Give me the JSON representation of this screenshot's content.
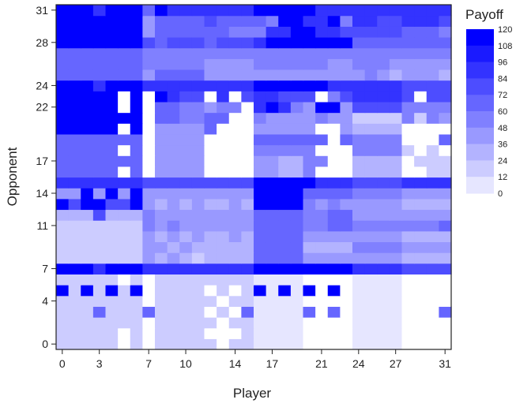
{
  "chart_data": {
    "type": "heatmap",
    "title": "",
    "xlabel": "Player",
    "ylabel": "Opponent",
    "x_ticks": [
      0,
      3,
      7,
      10,
      14,
      17,
      21,
      24,
      27,
      31
    ],
    "y_ticks": [
      0,
      4,
      7,
      11,
      14,
      17,
      22,
      24,
      28,
      31
    ],
    "x_range": [
      0,
      31
    ],
    "y_range": [
      0,
      31
    ],
    "colorbar": {
      "title": "Payoff",
      "ticks": [
        0,
        12,
        24,
        36,
        48,
        60,
        72,
        84,
        96,
        108,
        120
      ],
      "range": [
        0,
        120
      ],
      "color_low": "#ffffff",
      "color_high": "#0000ff"
    },
    "z": [
      [
        24,
        24,
        24,
        24,
        24,
        0,
        24,
        0,
        24,
        24,
        24,
        24,
        24,
        0,
        24,
        24,
        12,
        12,
        12,
        12,
        0,
        0,
        0,
        0,
        12,
        12,
        12,
        12,
        0,
        0,
        0,
        0
      ],
      [
        24,
        24,
        24,
        24,
        24,
        0,
        24,
        0,
        24,
        24,
        24,
        24,
        0,
        0,
        0,
        24,
        12,
        12,
        12,
        12,
        0,
        0,
        0,
        0,
        12,
        12,
        12,
        12,
        0,
        0,
        0,
        0
      ],
      [
        24,
        24,
        24,
        24,
        24,
        24,
        24,
        0,
        24,
        24,
        24,
        24,
        24,
        0,
        24,
        24,
        12,
        12,
        12,
        12,
        0,
        0,
        0,
        0,
        12,
        12,
        12,
        12,
        0,
        0,
        0,
        0
      ],
      [
        24,
        24,
        24,
        72,
        24,
        24,
        24,
        72,
        24,
        24,
        24,
        24,
        0,
        24,
        0,
        72,
        12,
        12,
        12,
        12,
        72,
        0,
        72,
        0,
        12,
        12,
        12,
        12,
        0,
        0,
        0,
        72
      ],
      [
        24,
        24,
        24,
        24,
        24,
        24,
        24,
        0,
        24,
        24,
        24,
        24,
        24,
        0,
        24,
        24,
        12,
        12,
        12,
        12,
        0,
        0,
        0,
        0,
        12,
        12,
        12,
        12,
        0,
        0,
        0,
        0
      ],
      [
        120,
        24,
        120,
        24,
        120,
        24,
        120,
        0,
        24,
        24,
        24,
        24,
        0,
        24,
        0,
        24,
        120,
        12,
        120,
        12,
        120,
        0,
        120,
        0,
        12,
        12,
        12,
        12,
        0,
        0,
        0,
        0
      ],
      [
        24,
        24,
        24,
        24,
        24,
        0,
        24,
        0,
        24,
        24,
        24,
        24,
        24,
        24,
        24,
        24,
        12,
        12,
        12,
        12,
        0,
        0,
        0,
        0,
        12,
        12,
        12,
        12,
        0,
        0,
        0,
        0
      ],
      [
        120,
        120,
        120,
        96,
        120,
        120,
        120,
        96,
        96,
        96,
        96,
        96,
        96,
        96,
        96,
        96,
        120,
        120,
        120,
        120,
        120,
        120,
        120,
        120,
        96,
        96,
        96,
        96,
        84,
        84,
        84,
        84
      ],
      [
        24,
        24,
        24,
        24,
        24,
        24,
        24,
        48,
        36,
        48,
        36,
        24,
        36,
        36,
        36,
        36,
        72,
        72,
        72,
        72,
        48,
        48,
        48,
        48,
        48,
        48,
        48,
        48,
        36,
        36,
        36,
        36
      ],
      [
        24,
        24,
        24,
        24,
        24,
        24,
        24,
        48,
        48,
        36,
        48,
        36,
        36,
        36,
        36,
        36,
        72,
        72,
        72,
        72,
        36,
        36,
        36,
        36,
        60,
        60,
        60,
        60,
        48,
        48,
        48,
        48
      ],
      [
        24,
        24,
        24,
        24,
        24,
        24,
        24,
        48,
        36,
        48,
        36,
        48,
        36,
        36,
        48,
        36,
        72,
        72,
        72,
        72,
        48,
        48,
        48,
        48,
        48,
        48,
        48,
        48,
        36,
        36,
        36,
        36
      ],
      [
        24,
        24,
        24,
        24,
        24,
        24,
        24,
        60,
        48,
        60,
        48,
        48,
        48,
        48,
        48,
        48,
        72,
        72,
        72,
        72,
        60,
        60,
        72,
        72,
        60,
        60,
        60,
        60,
        60,
        60,
        60,
        72
      ],
      [
        36,
        36,
        36,
        84,
        36,
        36,
        36,
        60,
        48,
        48,
        48,
        48,
        48,
        48,
        48,
        48,
        72,
        72,
        72,
        72,
        60,
        60,
        72,
        72,
        48,
        48,
        48,
        48,
        48,
        48,
        48,
        48
      ],
      [
        120,
        84,
        120,
        120,
        84,
        84,
        120,
        48,
        36,
        48,
        36,
        48,
        36,
        36,
        48,
        36,
        120,
        120,
        120,
        120,
        60,
        48,
        60,
        48,
        48,
        48,
        48,
        48,
        36,
        36,
        36,
        36
      ],
      [
        48,
        48,
        120,
        48,
        120,
        48,
        120,
        48,
        48,
        48,
        48,
        48,
        48,
        48,
        48,
        48,
        120,
        120,
        120,
        120,
        72,
        72,
        72,
        72,
        60,
        60,
        60,
        60,
        48,
        48,
        48,
        48
      ],
      [
        96,
        96,
        96,
        96,
        96,
        96,
        96,
        84,
        84,
        84,
        84,
        84,
        84,
        84,
        84,
        84,
        120,
        120,
        120,
        120,
        120,
        96,
        96,
        96,
        84,
        84,
        84,
        84,
        96,
        96,
        96,
        96
      ],
      [
        72,
        72,
        72,
        72,
        72,
        0,
        72,
        0,
        48,
        48,
        48,
        48,
        0,
        0,
        0,
        0,
        48,
        48,
        36,
        36,
        60,
        0,
        0,
        0,
        36,
        36,
        36,
        36,
        0,
        0,
        24,
        24
      ],
      [
        72,
        72,
        72,
        72,
        72,
        72,
        72,
        0,
        48,
        48,
        48,
        48,
        0,
        0,
        0,
        0,
        48,
        48,
        36,
        36,
        60,
        60,
        0,
        0,
        36,
        36,
        36,
        36,
        0,
        24,
        24,
        24
      ],
      [
        72,
        72,
        72,
        72,
        72,
        0,
        72,
        0,
        48,
        48,
        48,
        48,
        0,
        0,
        0,
        0,
        60,
        60,
        60,
        60,
        60,
        0,
        0,
        0,
        60,
        60,
        60,
        60,
        24,
        0,
        24,
        0
      ],
      [
        72,
        72,
        72,
        72,
        72,
        72,
        72,
        0,
        48,
        48,
        48,
        48,
        0,
        0,
        0,
        0,
        72,
        72,
        72,
        72,
        72,
        72,
        0,
        72,
        60,
        60,
        60,
        60,
        0,
        0,
        0,
        72
      ],
      [
        120,
        120,
        120,
        120,
        120,
        0,
        120,
        0,
        48,
        48,
        48,
        48,
        72,
        0,
        0,
        0,
        48,
        48,
        48,
        48,
        48,
        0,
        0,
        48,
        36,
        36,
        36,
        36,
        0,
        0,
        0,
        0
      ],
      [
        120,
        120,
        120,
        120,
        120,
        120,
        120,
        0,
        72,
        72,
        60,
        60,
        72,
        72,
        0,
        0,
        60,
        48,
        48,
        48,
        48,
        60,
        48,
        48,
        24,
        24,
        24,
        24,
        60,
        24,
        60,
        48
      ],
      [
        120,
        120,
        120,
        120,
        120,
        0,
        120,
        0,
        72,
        72,
        60,
        60,
        48,
        60,
        60,
        0,
        96,
        120,
        96,
        60,
        48,
        120,
        120,
        48,
        84,
        84,
        84,
        84,
        60,
        60,
        60,
        60
      ],
      [
        120,
        120,
        120,
        120,
        120,
        0,
        120,
        0,
        120,
        96,
        84,
        84,
        0,
        96,
        0,
        84,
        96,
        96,
        84,
        84,
        84,
        0,
        60,
        84,
        96,
        96,
        96,
        96,
        84,
        0,
        84,
        84
      ],
      [
        120,
        120,
        120,
        96,
        120,
        120,
        120,
        96,
        96,
        96,
        96,
        96,
        96,
        96,
        96,
        96,
        120,
        120,
        120,
        120,
        120,
        120,
        96,
        96,
        96,
        96,
        96,
        96,
        84,
        84,
        84,
        84
      ],
      [
        72,
        72,
        72,
        72,
        72,
        72,
        72,
        48,
        72,
        72,
        72,
        72,
        48,
        48,
        48,
        48,
        48,
        48,
        48,
        48,
        48,
        48,
        48,
        48,
        48,
        60,
        48,
        36,
        48,
        48,
        48,
        36
      ],
      [
        72,
        72,
        72,
        72,
        72,
        72,
        72,
        60,
        60,
        60,
        60,
        60,
        48,
        48,
        48,
        48,
        60,
        60,
        60,
        60,
        60,
        60,
        48,
        48,
        60,
        60,
        60,
        48,
        48,
        48,
        48,
        48
      ],
      [
        72,
        72,
        72,
        72,
        72,
        72,
        72,
        60,
        60,
        60,
        60,
        60,
        60,
        60,
        60,
        60,
        60,
        60,
        60,
        60,
        60,
        60,
        60,
        60,
        60,
        60,
        60,
        60,
        60,
        60,
        60,
        60
      ],
      [
        120,
        120,
        120,
        120,
        120,
        120,
        120,
        84,
        72,
        84,
        84,
        84,
        72,
        84,
        84,
        84,
        96,
        120,
        120,
        120,
        120,
        120,
        120,
        120,
        72,
        72,
        72,
        72,
        72,
        72,
        72,
        72
      ],
      [
        120,
        120,
        120,
        120,
        120,
        120,
        120,
        48,
        72,
        72,
        72,
        72,
        72,
        72,
        60,
        60,
        60,
        96,
        96,
        120,
        120,
        96,
        96,
        84,
        84,
        84,
        84,
        84,
        72,
        72,
        72,
        60
      ],
      [
        120,
        120,
        120,
        120,
        120,
        120,
        120,
        48,
        72,
        72,
        72,
        72,
        84,
        72,
        72,
        72,
        72,
        60,
        120,
        120,
        96,
        96,
        120,
        60,
        96,
        96,
        84,
        84,
        96,
        96,
        96,
        84
      ],
      [
        120,
        120,
        120,
        96,
        120,
        120,
        120,
        72,
        120,
        96,
        96,
        96,
        96,
        96,
        96,
        96,
        120,
        120,
        120,
        120,
        120,
        96,
        96,
        96,
        96,
        96,
        96,
        96,
        96,
        96,
        96,
        96
      ]
    ]
  }
}
